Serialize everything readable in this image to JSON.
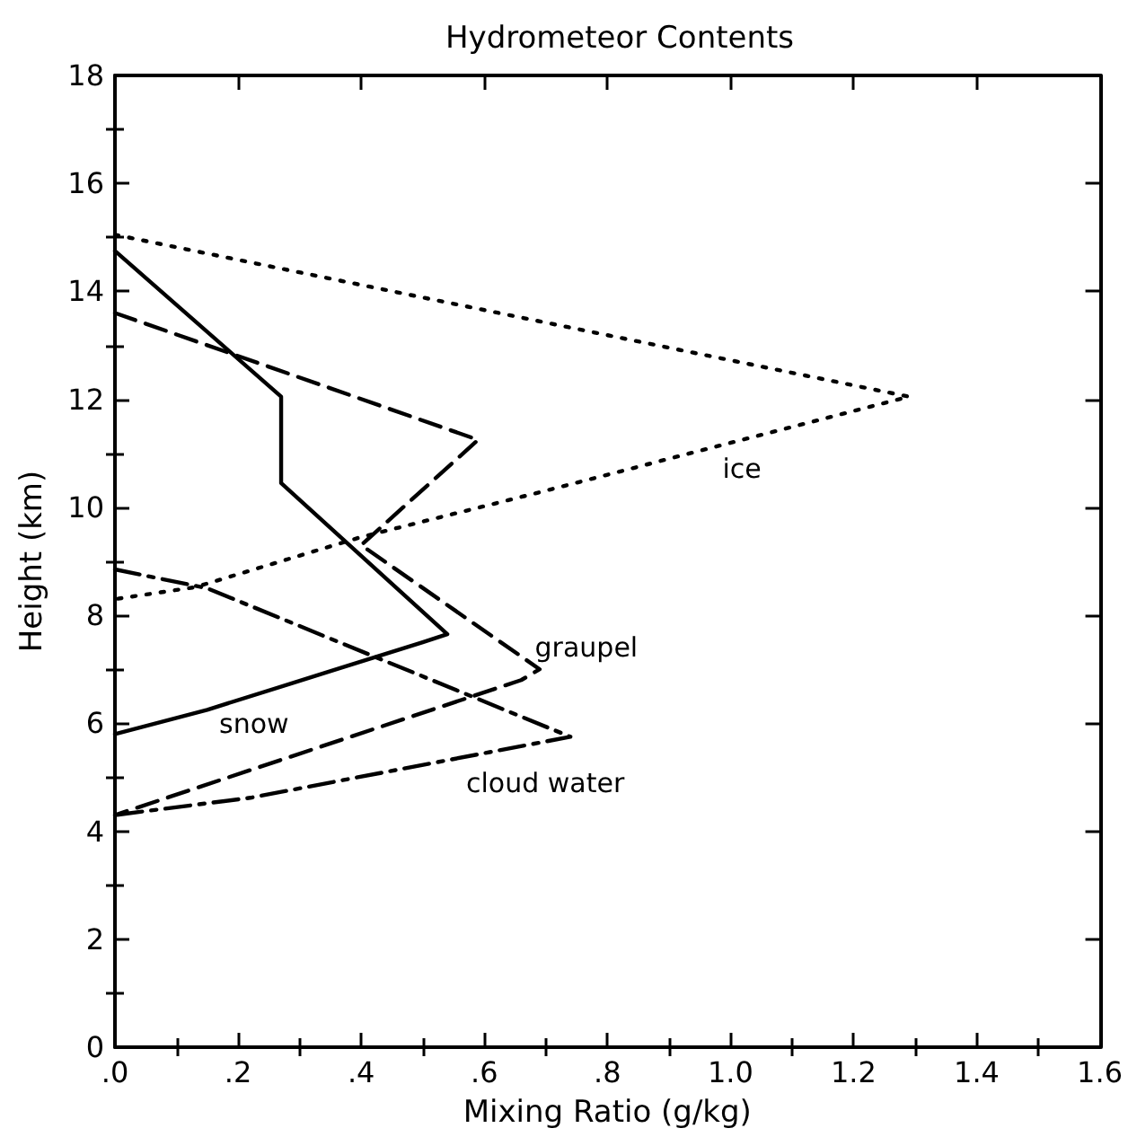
{
  "chart_data": {
    "type": "line",
    "title": "Hydrometeor Contents",
    "xlabel": "Mixing Ratio (g/kg)",
    "ylabel": "Height (km)",
    "series": [
      {
        "name": "ice",
        "color": "#000000",
        "line_style": "dotted",
        "x": [
          0,
          1.29,
          0.68,
          0.4,
          0.13,
          0
        ],
        "values": [
          15.05,
          12.05,
          10.25,
          9.45,
          8.52,
          8.3
        ]
      },
      {
        "name": "snow",
        "color": "#000000",
        "line_style": "solid",
        "x": [
          0,
          0.27,
          0.27,
          0.54,
          0.5,
          0.36,
          0.15,
          0
        ],
        "values": [
          14.75,
          12.05,
          10.45,
          7.65,
          7.5,
          7.0,
          6.25,
          5.8
        ]
      },
      {
        "name": "graupel",
        "color": "#000000",
        "line_style": "dashed",
        "x": [
          0,
          0.59,
          0.4,
          0.69,
          0.66,
          0
        ],
        "values": [
          13.6,
          11.25,
          9.3,
          7.0,
          6.8,
          4.3
        ]
      },
      {
        "name": "cloud water",
        "color": "#000000",
        "line_style": "dashdot",
        "x": [
          0,
          0.15,
          0.74,
          0.22,
          0
        ],
        "values": [
          8.85,
          8.5,
          5.75,
          4.62,
          4.3
        ]
      }
    ],
    "xlim": [
      0,
      1.6
    ],
    "ylim": [
      0,
      18
    ],
    "xticks": [
      {
        "value": 0,
        "label": ".0"
      },
      {
        "value": 0.1,
        "label": null
      },
      {
        "value": 0.2,
        "label": ".2"
      },
      {
        "value": 0.3,
        "label": null
      },
      {
        "value": 0.4,
        "label": ".4"
      },
      {
        "value": 0.5,
        "label": null
      },
      {
        "value": 0.6,
        "label": ".6"
      },
      {
        "value": 0.7,
        "label": null
      },
      {
        "value": 0.8,
        "label": ".8"
      },
      {
        "value": 0.9,
        "label": null
      },
      {
        "value": 1.0,
        "label": "1.0"
      },
      {
        "value": 1.1,
        "label": null
      },
      {
        "value": 1.2,
        "label": "1.2"
      },
      {
        "value": 1.3,
        "label": null
      },
      {
        "value": 1.4,
        "label": "1.4"
      },
      {
        "value": 1.5,
        "label": null
      },
      {
        "value": 1.6,
        "label": "1.6"
      }
    ],
    "yticks": [
      0,
      {
        "value": 1,
        "label": null
      },
      2,
      {
        "value": 3,
        "label": null
      },
      4,
      {
        "value": 5,
        "label": null
      },
      6,
      {
        "value": 7,
        "label": null
      },
      8,
      {
        "value": 9,
        "label": null
      },
      10,
      {
        "value": 11,
        "label": null
      },
      12,
      {
        "value": 13,
        "label": null
      },
      14,
      {
        "value": 15,
        "label": null
      },
      16,
      {
        "value": 17,
        "label": null
      },
      18
    ],
    "grid": false,
    "marker": "none"
  }
}
